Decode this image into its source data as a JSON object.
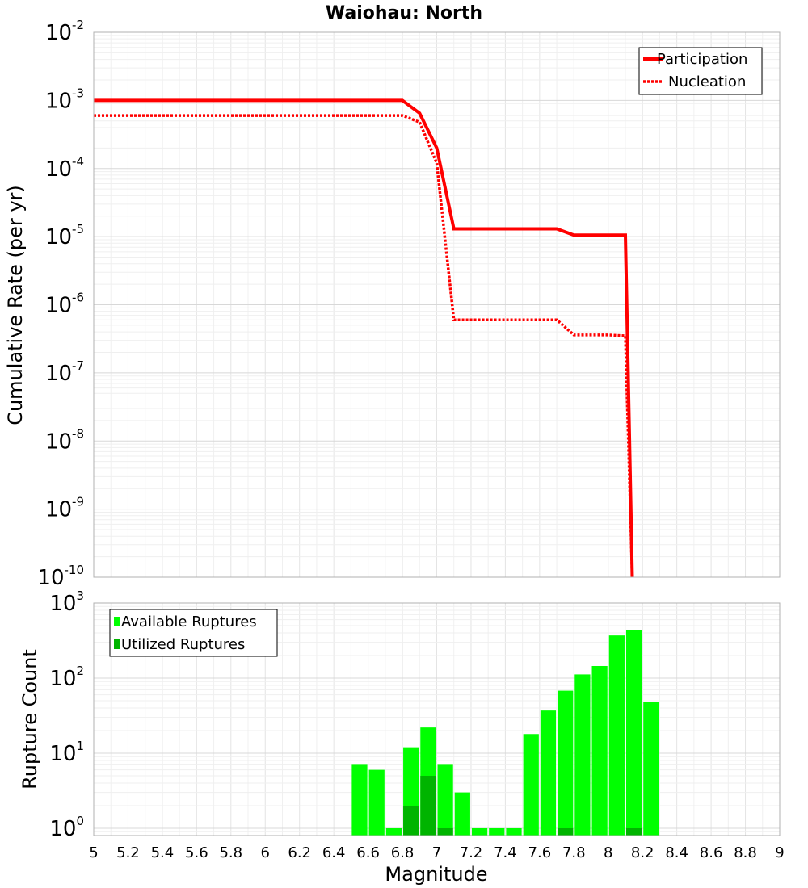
{
  "chart_data": [
    {
      "type": "line",
      "title": "Waiohau: North",
      "ylabel": "Cumulative Rate (per yr)",
      "xlim": [
        5,
        9
      ],
      "ylim": [
        1e-10,
        0.01
      ],
      "yscale": "log",
      "y_ticks": [
        {
          "base": "10",
          "exp": "-2"
        },
        {
          "base": "10",
          "exp": "-3"
        },
        {
          "base": "10",
          "exp": "-4"
        },
        {
          "base": "10",
          "exp": "-5"
        },
        {
          "base": "10",
          "exp": "-6"
        },
        {
          "base": "10",
          "exp": "-7"
        },
        {
          "base": "10",
          "exp": "-8"
        },
        {
          "base": "10",
          "exp": "-9"
        },
        {
          "base": "10",
          "exp": "-10"
        }
      ],
      "grid": true,
      "legend_position": "top-right",
      "series": [
        {
          "name": "Participation",
          "color": "#ff0000",
          "style": "solid",
          "x": [
            5.0,
            6.8,
            6.9,
            7.0,
            7.1,
            7.2,
            7.3,
            7.4,
            7.5,
            7.6,
            7.7,
            7.8,
            7.9,
            8.0,
            8.1,
            8.14
          ],
          "y": [
            0.001,
            0.001,
            0.00065,
            0.0002,
            1.3e-05,
            1.3e-05,
            1.3e-05,
            1.3e-05,
            1.3e-05,
            1.3e-05,
            1.3e-05,
            1.05e-05,
            1.05e-05,
            1.05e-05,
            1.05e-05,
            1e-10
          ]
        },
        {
          "name": "Nucleation",
          "color": "#ff0000",
          "style": "dotted",
          "x": [
            5.0,
            6.8,
            6.9,
            7.0,
            7.1,
            7.2,
            7.3,
            7.4,
            7.5,
            7.6,
            7.7,
            7.8,
            7.9,
            8.0,
            8.1,
            8.14
          ],
          "y": [
            0.0006,
            0.0006,
            0.00048,
            0.00012,
            6e-07,
            6e-07,
            6e-07,
            6e-07,
            6e-07,
            6e-07,
            6e-07,
            3.6e-07,
            3.6e-07,
            3.6e-07,
            3.5e-07,
            1e-10
          ]
        }
      ]
    },
    {
      "type": "bar",
      "xlabel": "Magnitude",
      "ylabel": "Rupture Count",
      "xlim": [
        5,
        9
      ],
      "ylim": [
        0.8,
        1000
      ],
      "yscale": "log",
      "y_ticks": [
        {
          "base": "10",
          "exp": "3"
        },
        {
          "base": "10",
          "exp": "2"
        },
        {
          "base": "10",
          "exp": "1"
        },
        {
          "base": "10",
          "exp": "0"
        }
      ],
      "x_ticks": [
        "5",
        "5.2",
        "5.4",
        "5.6",
        "5.8",
        "6",
        "6.2",
        "6.4",
        "6.6",
        "6.8",
        "7",
        "7.2",
        "7.4",
        "7.6",
        "7.8",
        "8",
        "8.2",
        "8.4",
        "8.6",
        "8.8",
        "9"
      ],
      "grid": true,
      "legend_position": "top-left",
      "bin_width": 0.1,
      "series": [
        {
          "name": "Available Ruptures",
          "color": "#00ff00",
          "bins": [
            6.55,
            6.65,
            6.75,
            6.85,
            6.95,
            7.05,
            7.15,
            7.25,
            7.35,
            7.45,
            7.55,
            7.65,
            7.75,
            7.85,
            7.95,
            8.05,
            8.15,
            8.25
          ],
          "values": [
            7,
            6,
            1,
            12,
            22,
            7,
            3,
            1,
            1,
            1,
            18,
            37,
            68,
            112,
            145,
            370,
            440,
            48
          ]
        },
        {
          "name": "Utilized Ruptures",
          "color": "#00b400",
          "bins": [
            6.85,
            6.95,
            7.05,
            7.75,
            8.15
          ],
          "values": [
            2,
            5,
            1,
            1,
            1
          ]
        }
      ]
    }
  ]
}
